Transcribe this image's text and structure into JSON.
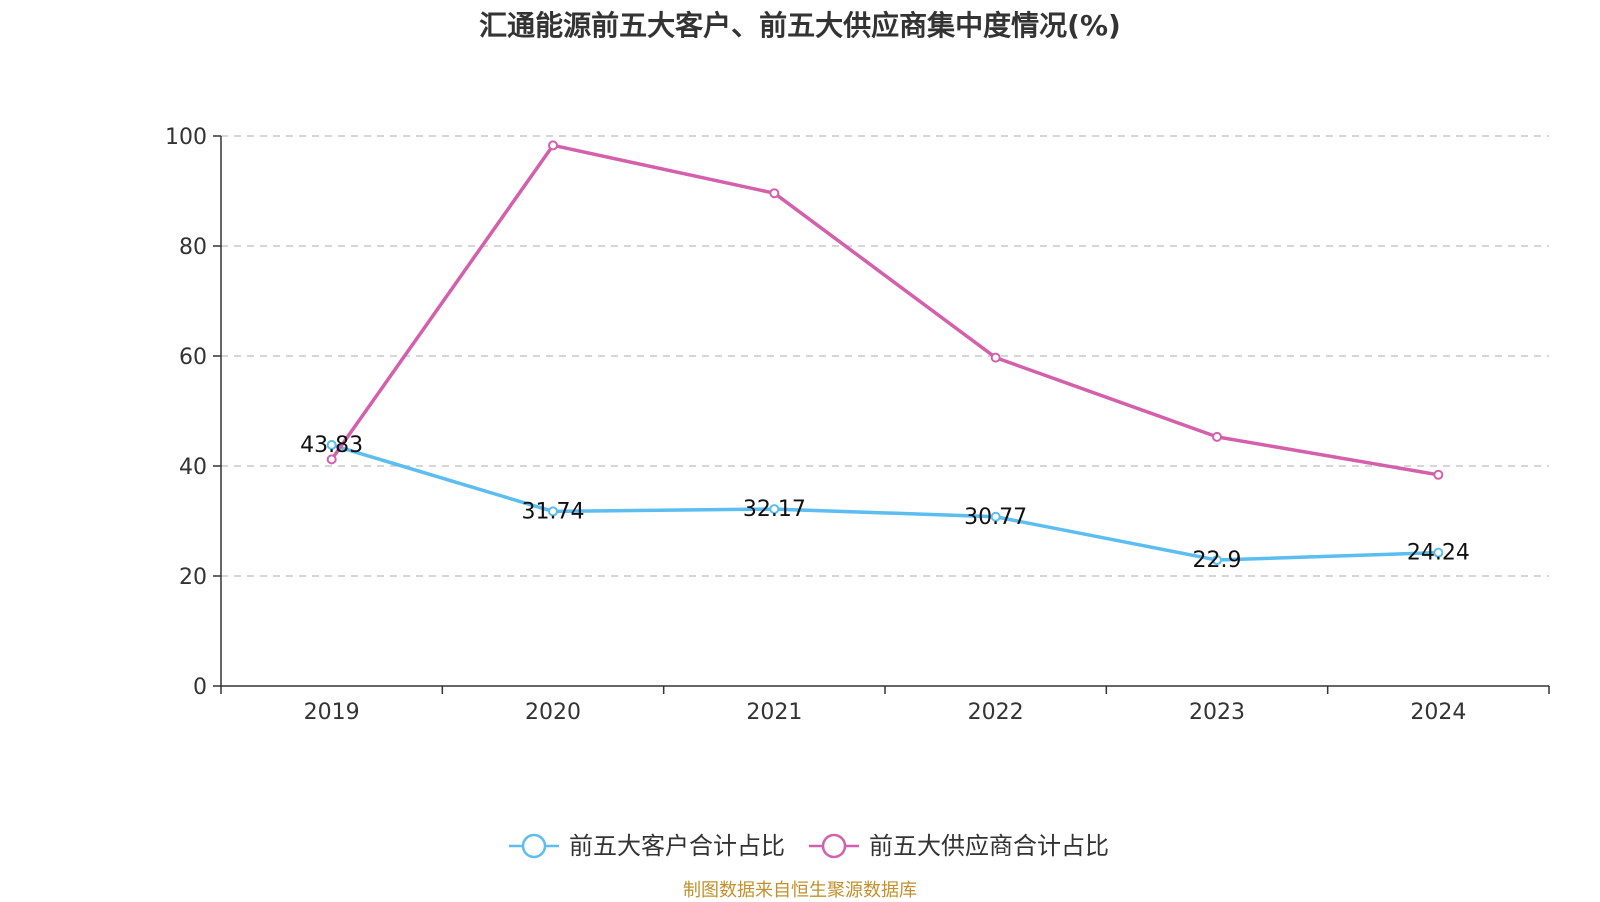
{
  "chart_data": {
    "type": "line",
    "title": "汇通能源前五大客户、前五大供应商集中度情况(%)",
    "categories": [
      "2019",
      "2020",
      "2021",
      "2022",
      "2023",
      "2024"
    ],
    "ylim": [
      0,
      100
    ],
    "yticks": [
      0,
      20,
      40,
      60,
      80,
      100
    ],
    "grid": "horizontal-dashed",
    "legend_position": "bottom-center",
    "series": [
      {
        "name": "前五大客户合计占比",
        "color": "#5BBDF0",
        "values": [
          43.83,
          31.74,
          32.17,
          30.77,
          22.9,
          24.24
        ],
        "labels": [
          "43.83",
          "31.74",
          "32.17",
          "30.77",
          "22.9",
          "24.24"
        ]
      },
      {
        "name": "前五大供应商合计占比",
        "color": "#D45FAB",
        "values": [
          41.2,
          98.3,
          89.6,
          59.7,
          45.3,
          38.4
        ]
      }
    ],
    "source": "制图数据来自恒生聚源数据库",
    "source_color": "#C0912C"
  }
}
